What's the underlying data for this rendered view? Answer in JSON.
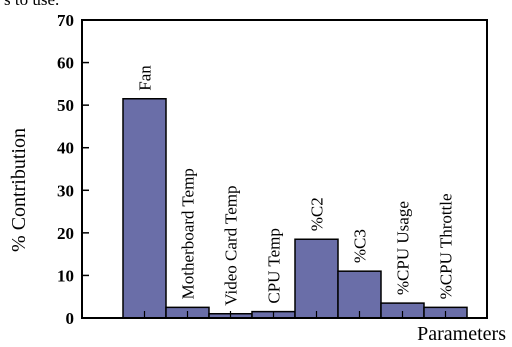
{
  "top_text": "s to use.",
  "chart_data": {
    "type": "bar",
    "categories": [
      "Fan",
      "Motherboard Temp",
      "Video Card Temp",
      "CPU Temp",
      "%C2",
      "%C3",
      "%CPU Usage",
      "%CPU Throttle"
    ],
    "values": [
      51.5,
      2.5,
      1.0,
      1.5,
      18.5,
      11.0,
      3.5,
      2.5
    ],
    "xlabel": "Parameters",
    "ylabel": "% Contribution",
    "ylim": [
      0,
      70
    ],
    "yticks": [
      0,
      10,
      20,
      30,
      40,
      50,
      60,
      70
    ],
    "bar_color": "#6a6ea8",
    "grid": false
  }
}
